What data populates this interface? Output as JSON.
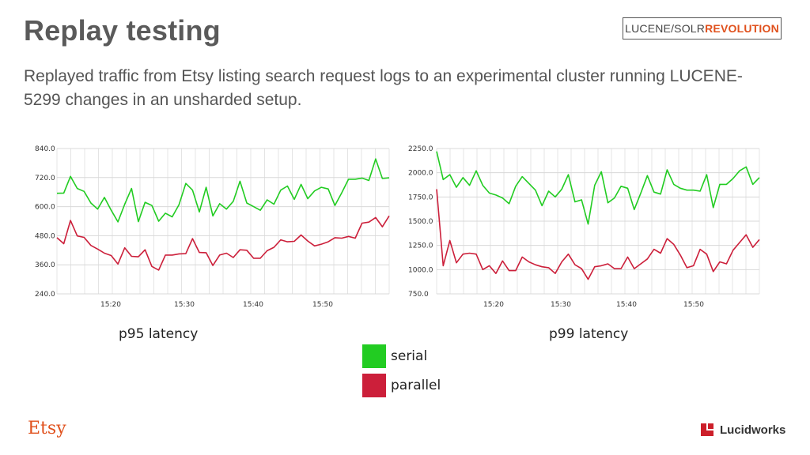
{
  "slide": {
    "title": "Replay testing",
    "subtitle": "Replayed traffic from Etsy listing search request logs to an experimental cluster running LUCENE-5299 changes in an unsharded setup.",
    "badge_part1": "LUCENE/SOLR",
    "badge_part2": "REVOLUTION",
    "etsy_logo": "Etsy",
    "lucidworks_logo": "Lucidworks",
    "captions": {
      "left": "p95 latency",
      "right": "p99 latency"
    },
    "legend": [
      {
        "label": "serial",
        "color": "#22cc22"
      },
      {
        "label": "parallel",
        "color": "#cc1f3a"
      }
    ]
  },
  "chart_data": [
    {
      "type": "line",
      "title": "",
      "caption": "p95 latency",
      "xlabel": "",
      "ylabel": "",
      "ylim": [
        240,
        840
      ],
      "y_ticks": [
        "840.0",
        "720.0",
        "600.0",
        "480.0",
        "360.0",
        "240.0"
      ],
      "x_ticks": [
        "15:20",
        "15:30",
        "15:40",
        "15:50"
      ],
      "grid": true,
      "series": [
        {
          "name": "serial",
          "color": "#22cc22",
          "values": [
            655,
            656,
            725,
            675,
            663,
            615,
            590,
            638,
            585,
            537,
            610,
            675,
            538,
            618,
            605,
            540,
            573,
            558,
            608,
            696,
            668,
            578,
            680,
            562,
            612,
            590,
            622,
            705,
            615,
            600,
            585,
            628,
            610,
            668,
            685,
            630,
            692,
            633,
            665,
            680,
            673,
            605,
            657,
            713,
            713,
            718,
            708,
            797,
            716,
            719
          ]
        },
        {
          "name": "parallel",
          "color": "#cc1f3a",
          "values": [
            472,
            447,
            543,
            479,
            473,
            440,
            425,
            408,
            398,
            363,
            430,
            395,
            393,
            422,
            353,
            338,
            400,
            400,
            405,
            406,
            468,
            411,
            410,
            357,
            400,
            408,
            390,
            422,
            420,
            387,
            387,
            418,
            432,
            463,
            455,
            457,
            483,
            458,
            438,
            445,
            455,
            472,
            470,
            477,
            470,
            532,
            536,
            555,
            517,
            562
          ]
        }
      ]
    },
    {
      "type": "line",
      "title": "",
      "caption": "p99 latency",
      "xlabel": "",
      "ylabel": "",
      "ylim": [
        750,
        2250
      ],
      "y_ticks": [
        "2250.0",
        "2000.0",
        "1750.0",
        "1500.0",
        "1250.0",
        "1000.0",
        "750.0"
      ],
      "x_ticks": [
        "15:20",
        "15:30",
        "15:40",
        "15:50"
      ],
      "grid": true,
      "series": [
        {
          "name": "serial",
          "color": "#22cc22",
          "values": [
            2220,
            1930,
            1980,
            1850,
            1950,
            1870,
            2020,
            1870,
            1790,
            1770,
            1740,
            1680,
            1860,
            1960,
            1890,
            1820,
            1660,
            1810,
            1750,
            1830,
            1980,
            1700,
            1720,
            1470,
            1870,
            2010,
            1690,
            1740,
            1860,
            1840,
            1620,
            1790,
            1970,
            1800,
            1780,
            2030,
            1880,
            1840,
            1820,
            1820,
            1810,
            1980,
            1640,
            1880,
            1880,
            1940,
            2020,
            2060,
            1880,
            1950
          ]
        },
        {
          "name": "parallel",
          "color": "#cc1f3a",
          "values": [
            1830,
            1040,
            1300,
            1070,
            1160,
            1170,
            1160,
            1000,
            1040,
            960,
            1090,
            990,
            990,
            1130,
            1080,
            1050,
            1030,
            1020,
            960,
            1080,
            1160,
            1050,
            1010,
            900,
            1030,
            1040,
            1060,
            1010,
            1010,
            1130,
            1010,
            1060,
            1110,
            1210,
            1170,
            1320,
            1260,
            1150,
            1020,
            1040,
            1210,
            1160,
            980,
            1080,
            1060,
            1200,
            1280,
            1360,
            1230,
            1310
          ]
        }
      ]
    }
  ]
}
